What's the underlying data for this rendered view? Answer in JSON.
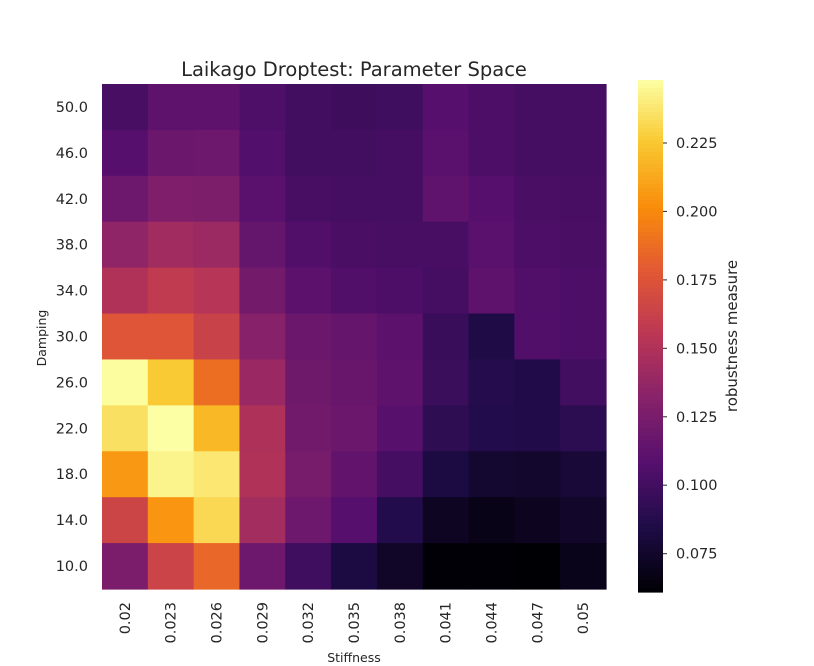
{
  "chart_data": {
    "type": "heatmap",
    "title": "Laikago Droptest: Parameter Space",
    "xlabel": "Stiffness",
    "ylabel": "Damping",
    "colorbar_label": "robustness measure",
    "colormap": "inferno",
    "vmin": 0.061,
    "vmax": 0.248,
    "colorbar_ticks": [
      "0.075",
      "0.100",
      "0.125",
      "0.150",
      "0.175",
      "0.200",
      "0.225"
    ],
    "colorbar_tick_values": [
      0.075,
      0.1,
      0.125,
      0.15,
      0.175,
      0.2,
      0.225
    ],
    "x": [
      "0.02",
      "0.023",
      "0.026",
      "0.029",
      "0.032",
      "0.035",
      "0.038",
      "0.041",
      "0.044",
      "0.047",
      "0.05"
    ],
    "y": [
      "50.0",
      "46.0",
      "42.0",
      "38.0",
      "34.0",
      "30.0",
      "26.0",
      "22.0",
      "18.0",
      "14.0",
      "10.0"
    ],
    "values": [
      [
        0.102,
        0.112,
        0.112,
        0.105,
        0.1,
        0.098,
        0.099,
        0.108,
        0.104,
        0.101,
        0.101
      ],
      [
        0.108,
        0.118,
        0.119,
        0.107,
        0.1,
        0.1,
        0.101,
        0.11,
        0.104,
        0.101,
        0.101
      ],
      [
        0.119,
        0.128,
        0.127,
        0.11,
        0.102,
        0.101,
        0.101,
        0.113,
        0.108,
        0.103,
        0.102
      ],
      [
        0.135,
        0.143,
        0.141,
        0.115,
        0.106,
        0.103,
        0.102,
        0.102,
        0.11,
        0.104,
        0.103
      ],
      [
        0.15,
        0.158,
        0.153,
        0.122,
        0.111,
        0.106,
        0.104,
        0.101,
        0.112,
        0.106,
        0.104
      ],
      [
        0.176,
        0.176,
        0.163,
        0.131,
        0.118,
        0.116,
        0.111,
        0.096,
        0.085,
        0.106,
        0.104
      ],
      [
        0.247,
        0.226,
        0.188,
        0.14,
        0.12,
        0.117,
        0.112,
        0.097,
        0.088,
        0.086,
        0.1
      ],
      [
        0.235,
        0.248,
        0.219,
        0.149,
        0.121,
        0.118,
        0.109,
        0.092,
        0.087,
        0.086,
        0.091
      ],
      [
        0.206,
        0.243,
        0.238,
        0.15,
        0.124,
        0.114,
        0.101,
        0.083,
        0.077,
        0.076,
        0.08
      ],
      [
        0.165,
        0.205,
        0.232,
        0.144,
        0.119,
        0.108,
        0.087,
        0.072,
        0.068,
        0.071,
        0.075
      ],
      [
        0.126,
        0.164,
        0.185,
        0.119,
        0.099,
        0.083,
        0.074,
        0.062,
        0.062,
        0.061,
        0.069
      ]
    ]
  }
}
